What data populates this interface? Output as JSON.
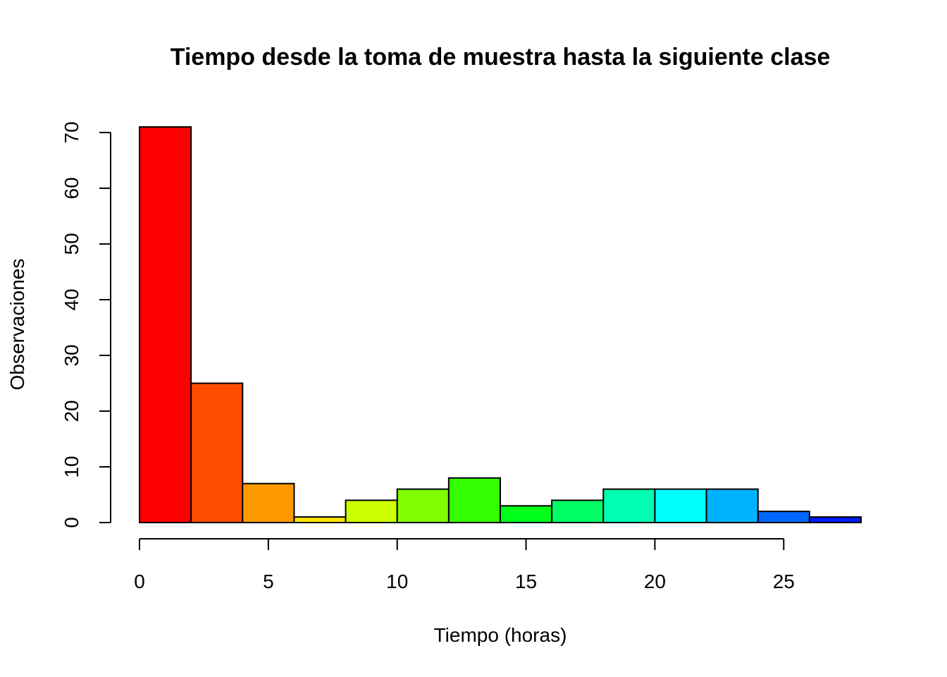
{
  "chart_data": {
    "type": "bar",
    "title": "Tiempo desde la toma de muestra hasta la siguiente clase",
    "xlabel": "Tiempo (horas)",
    "ylabel": "Observaciones",
    "histogram": true,
    "bin_edges": [
      0,
      2,
      4,
      6,
      8,
      10,
      12,
      14,
      16,
      18,
      20,
      22,
      24,
      26,
      28
    ],
    "values": [
      71,
      25,
      7,
      1,
      4,
      6,
      8,
      3,
      4,
      6,
      6,
      6,
      2,
      1
    ],
    "colors": [
      "#FF0000",
      "#FF4D00",
      "#FF9900",
      "#FFE500",
      "#CCFF00",
      "#80FF00",
      "#33FF00",
      "#00FF19",
      "#00FF66",
      "#00FFB2",
      "#00FFFF",
      "#00B3FF",
      "#0066FF",
      "#001AFF"
    ],
    "xlim": [
      0,
      28
    ],
    "ylim": [
      0,
      71
    ],
    "xticks": [
      0,
      5,
      10,
      15,
      20,
      25
    ],
    "yticks": [
      0,
      10,
      20,
      30,
      40,
      50,
      60,
      70
    ],
    "grid": false,
    "legend": "none"
  }
}
